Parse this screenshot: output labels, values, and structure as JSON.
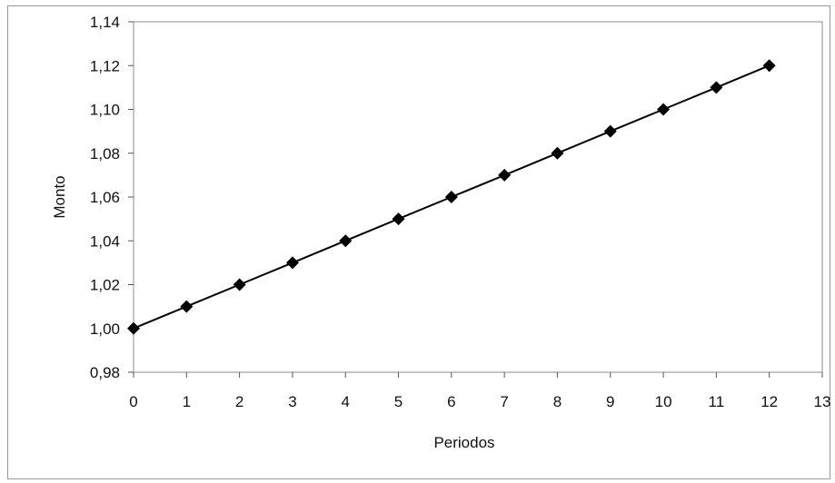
{
  "chart_data": {
    "type": "line",
    "title": "",
    "xlabel": "Periodos",
    "ylabel": "Monto",
    "xlim": [
      0,
      13
    ],
    "ylim": [
      0.98,
      1.14
    ],
    "x_ticks": [
      0,
      1,
      2,
      3,
      4,
      5,
      6,
      7,
      8,
      9,
      10,
      11,
      12,
      13
    ],
    "x_tick_labels": [
      "0",
      "1",
      "2",
      "3",
      "4",
      "5",
      "6",
      "7",
      "8",
      "9",
      "10",
      "11",
      "12",
      "13"
    ],
    "y_ticks": [
      0.98,
      1.0,
      1.02,
      1.04,
      1.06,
      1.08,
      1.1,
      1.12,
      1.14
    ],
    "y_tick_labels": [
      "0,98",
      "1,00",
      "1,02",
      "1,04",
      "1,06",
      "1,08",
      "1,10",
      "1,12",
      "1,14"
    ],
    "grid": false,
    "legend": "none",
    "marker": "diamond",
    "series": [
      {
        "x": [
          0,
          1,
          2,
          3,
          4,
          5,
          6,
          7,
          8,
          9,
          10,
          11,
          12
        ],
        "values": [
          1.0,
          1.01,
          1.02,
          1.03,
          1.04,
          1.05,
          1.06,
          1.07,
          1.08,
          1.09,
          1.1,
          1.11,
          1.12
        ],
        "color": "#000000"
      }
    ]
  }
}
